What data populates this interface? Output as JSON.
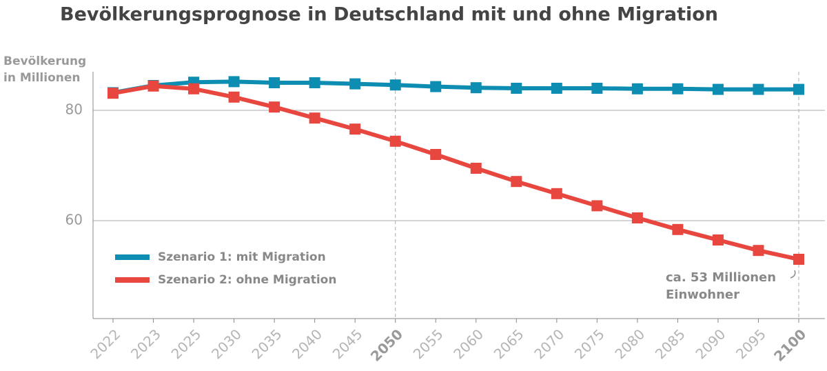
{
  "chart_data": {
    "type": "line",
    "title": "Bevölkerungsprognose in Deutschland mit und ohne Migration",
    "y_label": [
      "Bevölkerung",
      "in Millionen"
    ],
    "categories": [
      "2022",
      "2023",
      "2025",
      "2030",
      "2035",
      "2040",
      "2045",
      "2050",
      "2055",
      "2060",
      "2065",
      "2070",
      "2075",
      "2080",
      "2085",
      "2090",
      "2095",
      "2100"
    ],
    "highlight_indices": [
      7,
      17
    ],
    "series": [
      {
        "name": "Szenario 1: mit Migration",
        "color": "#0e8db3",
        "values": [
          83.2,
          84.5,
          85.1,
          85.2,
          85.0,
          85.0,
          84.8,
          84.6,
          84.3,
          84.1,
          84.0,
          84.0,
          84.0,
          83.9,
          83.9,
          83.8,
          83.8,
          83.8
        ]
      },
      {
        "name": "Szenario 2: ohne Migration",
        "color": "#e8473f",
        "values": [
          83.1,
          84.4,
          83.9,
          82.4,
          80.6,
          78.6,
          76.6,
          74.4,
          72.0,
          69.5,
          67.1,
          64.9,
          62.7,
          60.5,
          58.4,
          56.5,
          54.6,
          53.0
        ]
      }
    ],
    "annotation": [
      "ca. 53 Millionen",
      "Einwohner"
    ],
    "ylim": [
      42.25,
      87
    ],
    "yticks": [
      60,
      80
    ],
    "grid": true,
    "legend": "lower-left"
  }
}
